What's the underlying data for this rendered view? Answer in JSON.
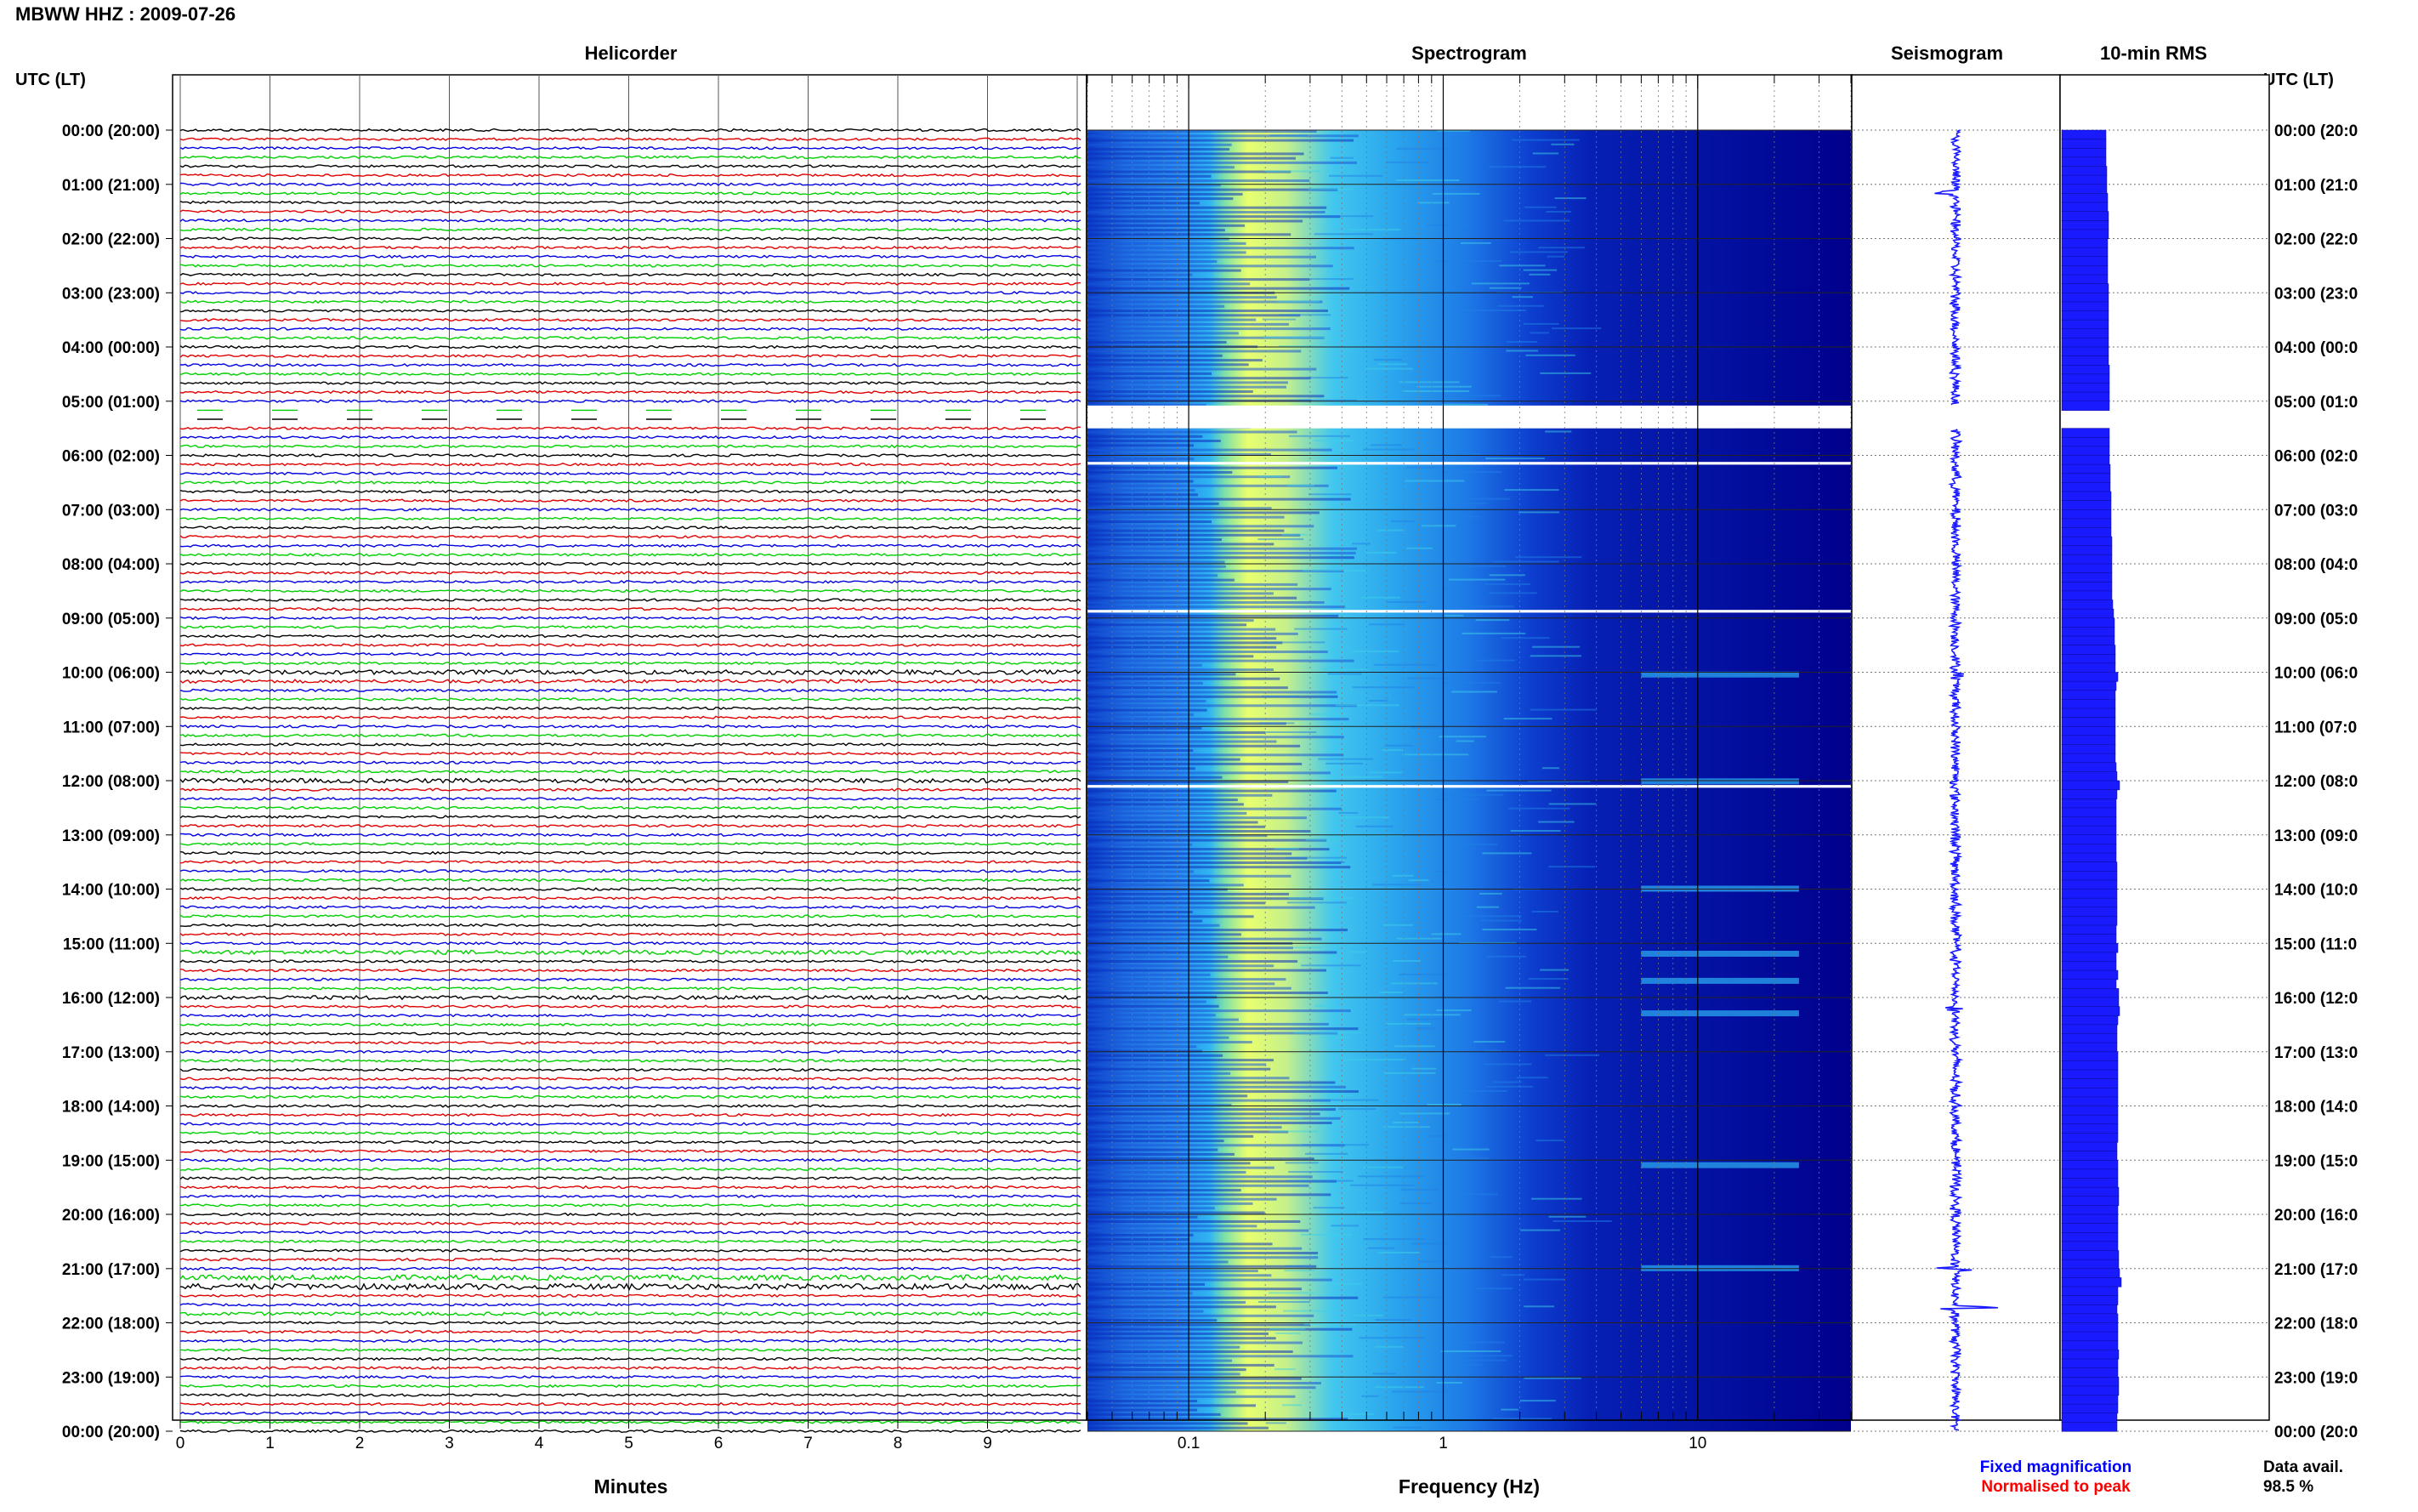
{
  "header": {
    "station_date": "MBWW HHZ : 2009-07-26",
    "utc_label_left": "UTC (LT)",
    "utc_label_right": "UTC (LT)"
  },
  "panels": {
    "helicorder": "Helicorder",
    "spectrogram": "Spectrogram",
    "seismogram": "Seismogram",
    "rms": "10-min RMS"
  },
  "axes": {
    "minutes_label": "Minutes",
    "minute_ticks": [
      "0",
      "1",
      "2",
      "3",
      "4",
      "5",
      "6",
      "7",
      "8",
      "9"
    ],
    "frequency_label": "Frequency (Hz)",
    "frequency_ticks": [
      "0.1",
      "1",
      "10"
    ]
  },
  "time_labels": [
    "00:00 (20:00)",
    "01:00 (21:00)",
    "02:00 (22:00)",
    "03:00 (23:00)",
    "04:00 (00:00)",
    "05:00 (01:00)",
    "06:00 (02:00)",
    "07:00 (03:00)",
    "08:00 (04:00)",
    "09:00 (05:00)",
    "10:00 (06:00)",
    "11:00 (07:00)",
    "12:00 (08:00)",
    "13:00 (09:00)",
    "14:00 (10:00)",
    "15:00 (11:00)",
    "16:00 (12:00)",
    "17:00 (13:00)",
    "18:00 (14:00)",
    "19:00 (15:00)",
    "20:00 (16:00)",
    "21:00 (17:00)",
    "22:00 (18:00)",
    "23:00 (19:00)",
    "00:00 (20:00)"
  ],
  "time_labels_right": [
    "00:00 (20:0",
    "01:00 (21:0",
    "02:00 (22:0",
    "03:00 (23:0",
    "04:00 (00:0",
    "05:00 (01:0",
    "06:00 (02:0",
    "07:00 (03:0",
    "08:00 (04:0",
    "09:00 (05:0",
    "10:00 (06:0",
    "11:00 (07:0",
    "12:00 (08:0",
    "13:00 (09:0",
    "14:00 (10:0",
    "15:00 (11:0",
    "16:00 (12:0",
    "17:00 (13:0",
    "18:00 (14:0",
    "19:00 (15:0",
    "20:00 (16:0",
    "21:00 (17:0",
    "22:00 (18:0",
    "23:00 (19:0",
    "00:00 (20:0"
  ],
  "legend": {
    "fixed": "Fixed magnification",
    "normalised": "Normalised to peak",
    "data_avail_label": "Data avail.",
    "data_avail_value": "98.5 %"
  },
  "colors": {
    "trace_cycle": [
      "#000000",
      "#e00000",
      "#0000e0",
      "#00d000"
    ],
    "fixed_text": "#0000ff",
    "normalised_text": "#ff0000",
    "spectrogram_low": "#00008c",
    "spectrogram_high": "#f5ff60",
    "rms_bar": "#1a1aff"
  },
  "chart_data": {
    "type": "heatmap",
    "title": "MBWW HHZ : 2009-07-26",
    "subplots": [
      "Helicorder",
      "Spectrogram",
      "Seismogram",
      "10-min RMS"
    ],
    "time_axis": {
      "start": "00:00",
      "end": "00:00 (next day)",
      "hours": 24,
      "traces_per_hour": 6,
      "minutes_per_trace": 10
    },
    "helicorder_x_range_minutes": [
      0,
      10
    ],
    "spectrogram_frequency_range_hz": [
      0.04,
      40
    ],
    "spectrogram_x_scale": "log",
    "data_gaps_utc": [
      "05:05-05:35",
      "06:10",
      "08:50",
      "12:05"
    ],
    "notable_activity_utc": [
      "10:00",
      "12:00",
      "15:10",
      "15:50",
      "16:10",
      "21:00",
      "21:40"
    ],
    "rms_relative": [
      0.52,
      0.52,
      0.52,
      0.52,
      0.53,
      0.53,
      0.53,
      0.54,
      0.54,
      0.55,
      0.55,
      0.55,
      0.54,
      0.54,
      0.54,
      0.54,
      0.54,
      0.55,
      0.55,
      0.55,
      0.55,
      0.55,
      0.55,
      0.55,
      0.55,
      0.55,
      0.56,
      0.56,
      0.56,
      0.56,
      0.56,
      0.0,
      0.0,
      0.56,
      0.56,
      0.56,
      0.56,
      0.57,
      0.57,
      0.57,
      0.58,
      0.58,
      0.58,
      0.58,
      0.58,
      0.59,
      0.59,
      0.59,
      0.59,
      0.59,
      0.59,
      0.59,
      0.6,
      0.61,
      0.62,
      0.62,
      0.62,
      0.63,
      0.63,
      0.63,
      0.66,
      0.64,
      0.63,
      0.63,
      0.63,
      0.63,
      0.63,
      0.63,
      0.63,
      0.63,
      0.64,
      0.65,
      0.68,
      0.65,
      0.64,
      0.64,
      0.64,
      0.64,
      0.64,
      0.64,
      0.64,
      0.65,
      0.65,
      0.65,
      0.65,
      0.65,
      0.65,
      0.65,
      0.64,
      0.64,
      0.66,
      0.64,
      0.64,
      0.66,
      0.64,
      0.67,
      0.67,
      0.68,
      0.66,
      0.65,
      0.65,
      0.65,
      0.66,
      0.66,
      0.66,
      0.66,
      0.66,
      0.66,
      0.66,
      0.66,
      0.66,
      0.66,
      0.65,
      0.65,
      0.66,
      0.66,
      0.66,
      0.67,
      0.67,
      0.66,
      0.66,
      0.66,
      0.66,
      0.66,
      0.67,
      0.67,
      0.68,
      0.7,
      0.66,
      0.66,
      0.65,
      0.66,
      0.66,
      0.66,
      0.66,
      0.67,
      0.66,
      0.66,
      0.67,
      0.67,
      0.66,
      0.66,
      0.65,
      0.65
    ],
    "rms_unit": "relative (no axis printed)"
  }
}
